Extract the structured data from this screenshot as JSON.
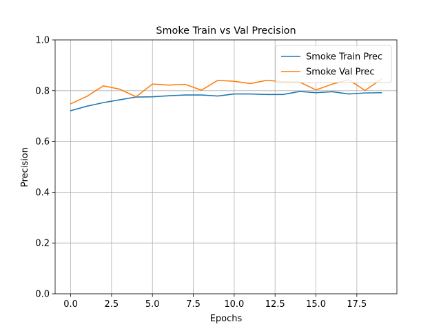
{
  "chart_data": {
    "type": "line",
    "title": "Smoke Train vs Val Precision",
    "xlabel": "Epochs",
    "ylabel": "Precision",
    "x": [
      0,
      1,
      2,
      3,
      4,
      5,
      6,
      7,
      8,
      9,
      10,
      11,
      12,
      13,
      14,
      15,
      16,
      17,
      18,
      19
    ],
    "xlim": [
      -0.95,
      19.95
    ],
    "ylim": [
      0.0,
      1.0
    ],
    "xticks": [
      0,
      2.5,
      5,
      7.5,
      10,
      12.5,
      15,
      17.5
    ],
    "xtick_labels": [
      "0.0",
      "2.5",
      "5.0",
      "7.5",
      "10.0",
      "12.5",
      "15.0",
      "17.5"
    ],
    "yticks": [
      0.0,
      0.2,
      0.4,
      0.6,
      0.8,
      1.0
    ],
    "ytick_labels": [
      "0.0",
      "0.2",
      "0.4",
      "0.6",
      "0.8",
      "1.0"
    ],
    "grid": true,
    "legend_position": "top-right",
    "series": [
      {
        "name": "Smoke Train Prec",
        "color": "#1f77b4",
        "values": [
          0.721,
          0.739,
          0.753,
          0.764,
          0.775,
          0.776,
          0.78,
          0.783,
          0.783,
          0.779,
          0.787,
          0.787,
          0.785,
          0.785,
          0.797,
          0.792,
          0.796,
          0.787,
          0.791,
          0.792
        ]
      },
      {
        "name": "Smoke Val Prec",
        "color": "#ff7f0e",
        "values": [
          0.748,
          0.778,
          0.819,
          0.806,
          0.776,
          0.826,
          0.822,
          0.825,
          0.802,
          0.841,
          0.837,
          0.828,
          0.841,
          0.835,
          0.834,
          0.803,
          0.826,
          0.843,
          0.801,
          0.845
        ]
      }
    ]
  }
}
